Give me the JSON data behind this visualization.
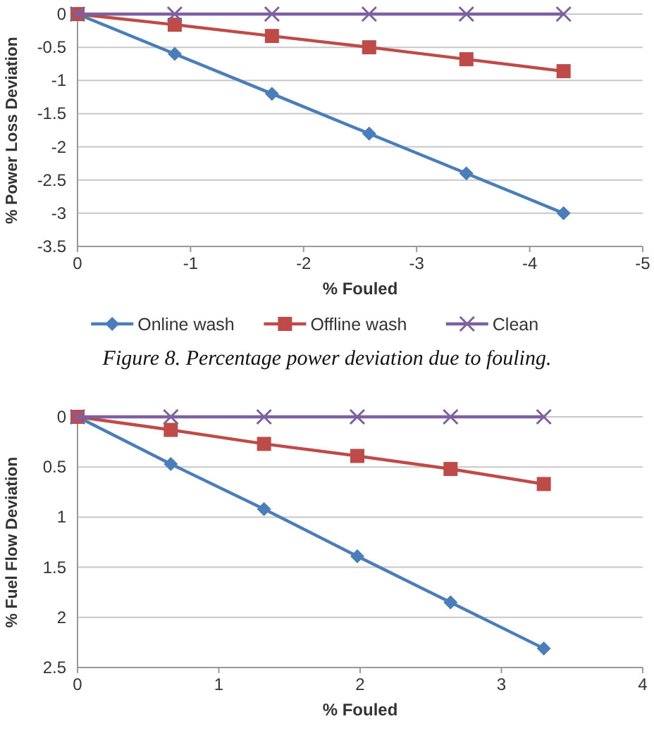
{
  "chart_data": [
    {
      "type": "line",
      "xlabel": "%  Fouled",
      "ylabel": "% Power Loss Deviation",
      "x": [
        0,
        -0.86,
        -1.72,
        -2.58,
        -3.44,
        -4.3
      ],
      "xlim": [
        0,
        -5
      ],
      "xticks": [
        0,
        -1,
        -2,
        -3,
        -4,
        -5
      ],
      "ylim": [
        -3.5,
        0
      ],
      "yticks": [
        0,
        -0.5,
        -1,
        -1.5,
        -2,
        -2.5,
        -3,
        -3.5
      ],
      "grid": "y",
      "legend": "bottom",
      "line_style": "solid",
      "series": [
        {
          "name": "Online wash",
          "color": "#4a7ebb",
          "marker": "diamond",
          "values": [
            0,
            -0.6,
            -1.2,
            -1.8,
            -2.4,
            -3.0
          ]
        },
        {
          "name": "Offline wash",
          "color": "#be4b48",
          "marker": "square",
          "values": [
            0,
            -0.16,
            -0.33,
            -0.5,
            -0.68,
            -0.86
          ]
        },
        {
          "name": "Clean",
          "color": "#7d60a0",
          "marker": "cross",
          "values": [
            0,
            0,
            0,
            0,
            0,
            0
          ]
        }
      ],
      "annotations": [
        "Figure 8. Percentage power deviation due to fouling."
      ]
    },
    {
      "type": "line",
      "xlabel": "% Fouled",
      "ylabel": "% Fuel Flow Deviation",
      "x": [
        0,
        0.66,
        1.32,
        1.98,
        2.64,
        3.3
      ],
      "xlim": [
        0,
        4
      ],
      "xticks": [
        0,
        1,
        2,
        3,
        4
      ],
      "ylim": [
        2.5,
        0
      ],
      "yticks": [
        0,
        0.5,
        1,
        1.5,
        2,
        2.5
      ],
      "grid": "y",
      "line_style": "solid",
      "series": [
        {
          "color": "#4a7ebb",
          "marker": "diamond",
          "values": [
            0,
            0.47,
            0.92,
            1.39,
            1.85,
            2.31
          ]
        },
        {
          "color": "#be4b48",
          "marker": "square",
          "values": [
            0,
            0.13,
            0.27,
            0.39,
            0.52,
            0.67
          ]
        },
        {
          "color": "#7d60a0",
          "marker": "cross",
          "values": [
            0,
            0,
            0,
            0,
            0,
            0
          ]
        }
      ]
    }
  ]
}
